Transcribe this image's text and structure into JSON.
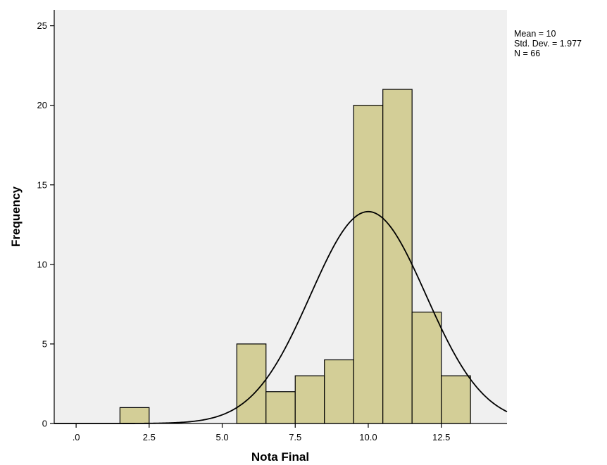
{
  "chart_data": {
    "type": "histogram",
    "xlabel": "Nota Final",
    "ylabel": "Frequency",
    "bin_width": 1,
    "bins": [
      {
        "x_start": 1.5,
        "x_end": 2.5,
        "count": 1
      },
      {
        "x_start": 5.5,
        "x_end": 6.5,
        "count": 5
      },
      {
        "x_start": 6.5,
        "x_end": 7.5,
        "count": 2
      },
      {
        "x_start": 7.5,
        "x_end": 8.5,
        "count": 3
      },
      {
        "x_start": 8.5,
        "x_end": 9.5,
        "count": 4
      },
      {
        "x_start": 9.5,
        "x_end": 10.5,
        "count": 20
      },
      {
        "x_start": 10.5,
        "x_end": 11.5,
        "count": 21
      },
      {
        "x_start": 11.5,
        "x_end": 12.5,
        "count": 7
      },
      {
        "x_start": 12.5,
        "x_end": 13.5,
        "count": 3
      }
    ],
    "normal_curve": {
      "mean": 10,
      "std_dev": 1.977,
      "n": 66
    },
    "xlim": [
      -0.75,
      14.75
    ],
    "ylim": [
      0,
      26
    ],
    "x_ticks": [
      {
        "value": 0,
        "label": ".0"
      },
      {
        "value": 2.5,
        "label": "2.5"
      },
      {
        "value": 5,
        "label": "5.0"
      },
      {
        "value": 7.5,
        "label": "7.5"
      },
      {
        "value": 10,
        "label": "10.0"
      },
      {
        "value": 12.5,
        "label": "12.5"
      }
    ],
    "y_ticks": [
      {
        "value": 0,
        "label": "0"
      },
      {
        "value": 5,
        "label": "5"
      },
      {
        "value": 10,
        "label": "10"
      },
      {
        "value": 15,
        "label": "15"
      },
      {
        "value": 20,
        "label": "20"
      },
      {
        "value": 25,
        "label": "25"
      }
    ],
    "stats_lines": [
      "Mean = 10",
      "Std. Dev. = 1.977",
      "N = 66"
    ],
    "legend_position": "right",
    "grid": false,
    "colors": {
      "plot_background": "#f0f0f0",
      "bar_fill": "#d3ce97",
      "bar_stroke": "#000000",
      "curve": "#000000",
      "axis": "#000000"
    }
  }
}
